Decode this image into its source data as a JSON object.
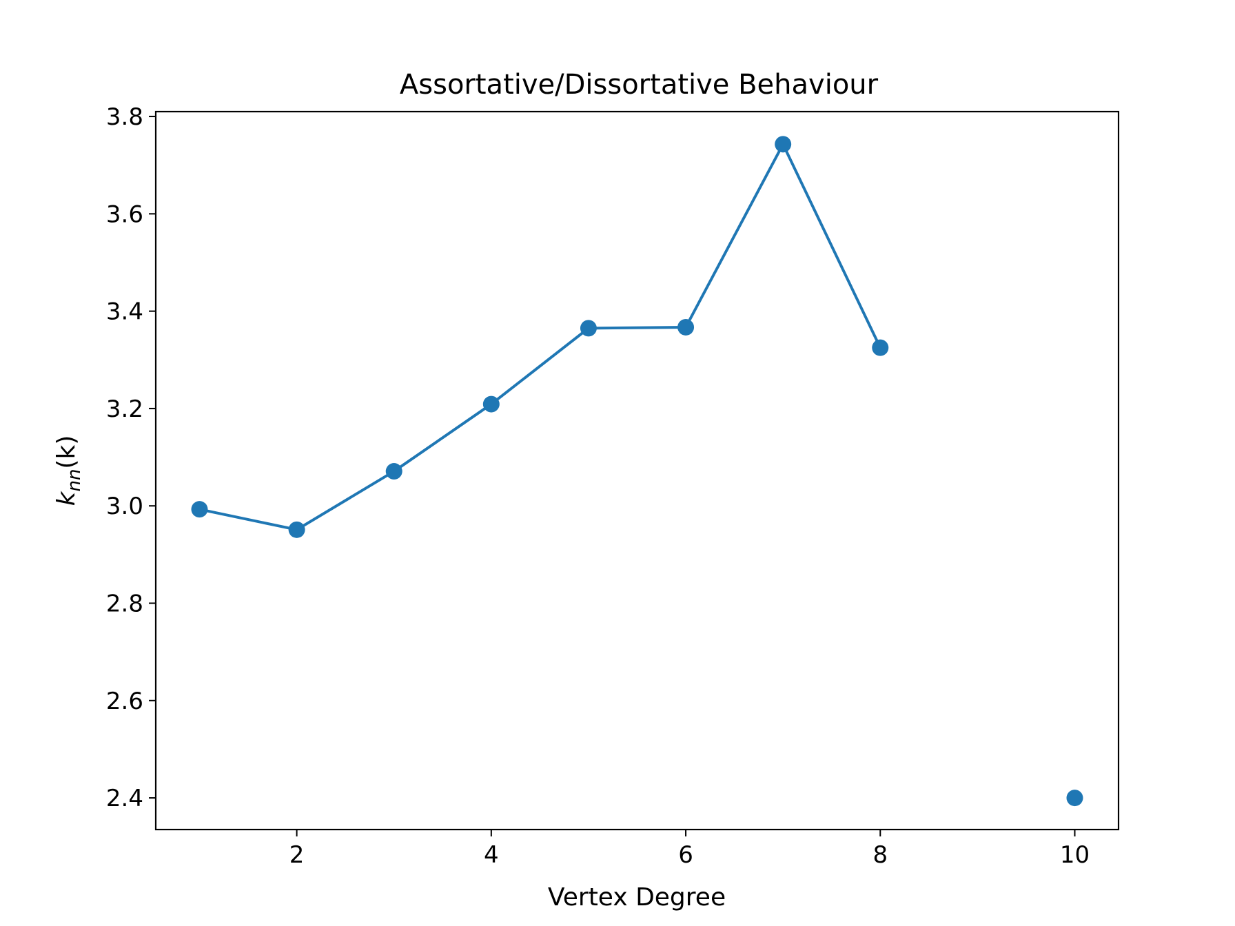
{
  "chart_data": {
    "type": "line",
    "title": "Assortative/Dissortative Behaviour",
    "xlabel": "Vertex Degree",
    "ylabel": {
      "base": "k",
      "subscript": "nn",
      "suffix": "(k)"
    },
    "xlim": [
      0.55,
      10.45
    ],
    "ylim": [
      2.335,
      3.81
    ],
    "xticks": [
      2,
      4,
      6,
      8,
      10
    ],
    "yticks": [
      2.4,
      2.6,
      2.8,
      3.0,
      3.2,
      3.4,
      3.6,
      3.8
    ],
    "grid": false,
    "series": [
      {
        "color": "#1f77b4",
        "marker": "circle",
        "x": [
          1,
          2,
          3,
          4,
          5,
          6,
          7,
          8,
          10
        ],
        "y": [
          2.993,
          2.951,
          3.071,
          3.209,
          3.365,
          3.367,
          3.743,
          3.325,
          2.4
        ],
        "connected": [
          true,
          true,
          true,
          true,
          true,
          true,
          true,
          false,
          false
        ]
      }
    ]
  }
}
